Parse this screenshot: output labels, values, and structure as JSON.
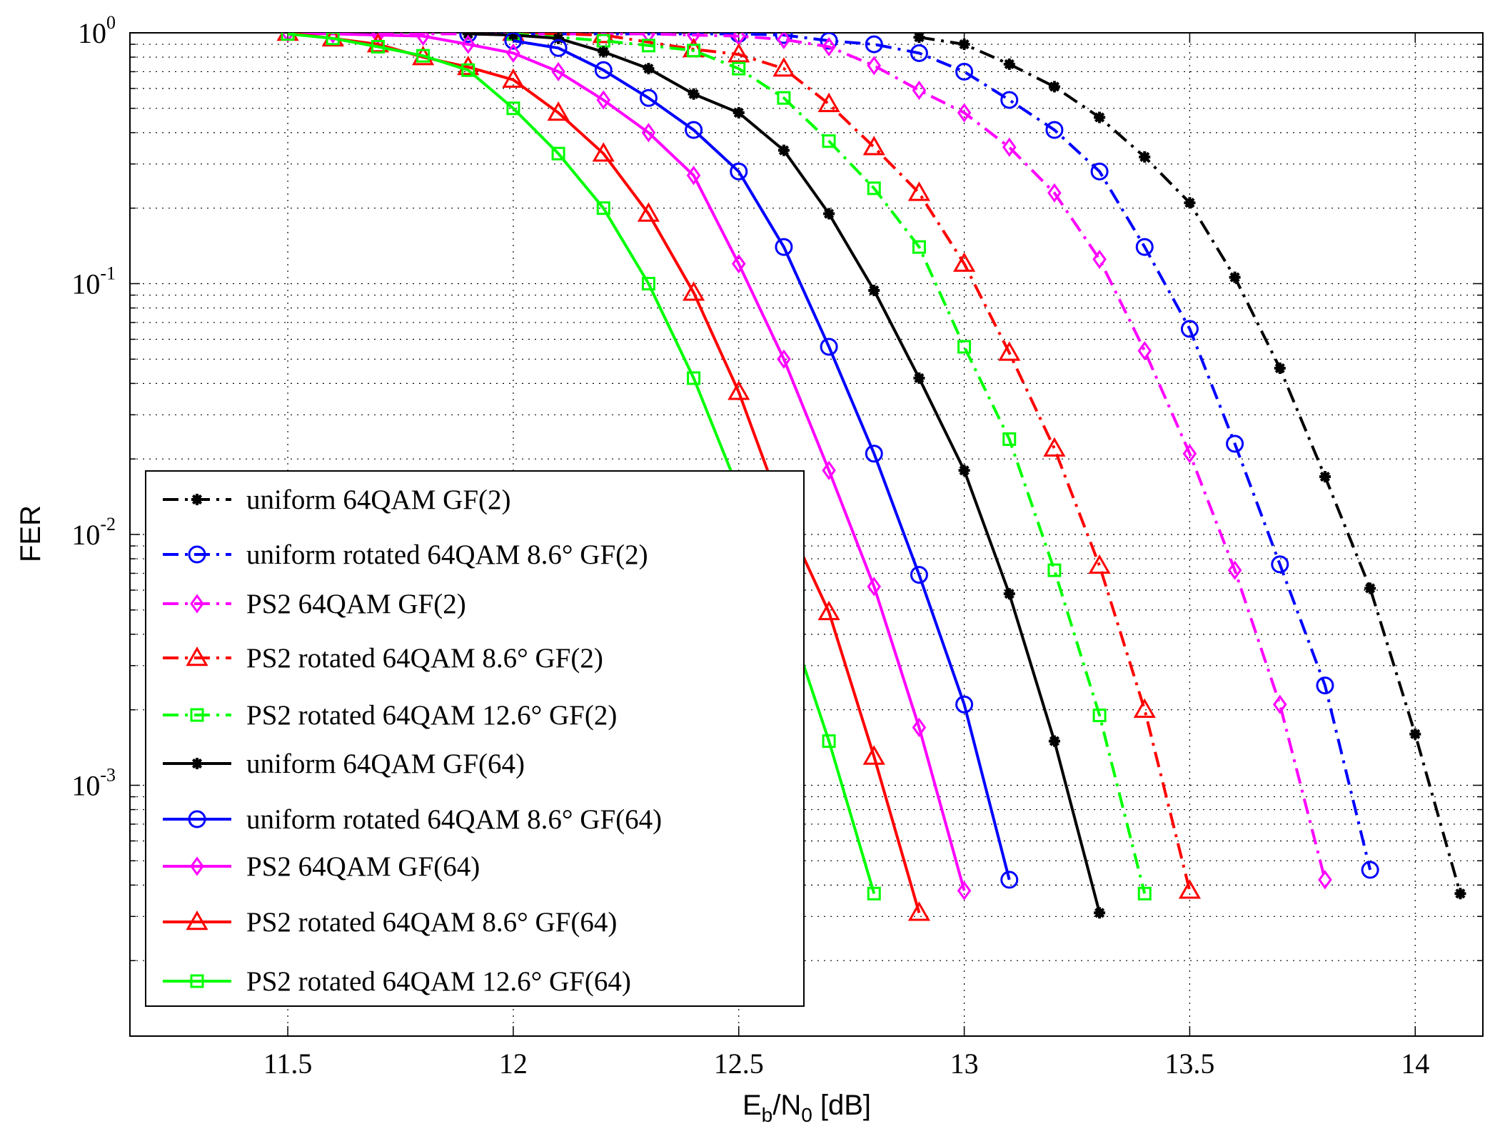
{
  "chart_data": {
    "type": "line",
    "title": "",
    "xlabel": {
      "base": "E",
      "sub1": "b",
      "mid": "/N",
      "sub2": "0",
      "tail": " [dB]"
    },
    "ylabel": "FER",
    "xlim": [
      11.15,
      14.15
    ],
    "ylim": [
      0.0001,
      1
    ],
    "yscale": "log",
    "grid": true,
    "legend_position": "bottom-left",
    "xticks": [
      "11.5",
      "12",
      "12.5",
      "13",
      "13.5",
      "14"
    ],
    "yticks": [
      {
        "base": "10",
        "exp": "0",
        "value": 1
      },
      {
        "base": "10",
        "exp": "-1",
        "value": 0.1
      },
      {
        "base": "10",
        "exp": "-2",
        "value": 0.01
      },
      {
        "base": "10",
        "exp": "-3",
        "value": 0.001
      }
    ],
    "series": [
      {
        "name": "uniform 64QAM GF(2)",
        "color": "#000000",
        "dash": "dashdot",
        "marker": "star",
        "x": [
          12.9,
          13.0,
          13.1,
          13.2,
          13.3,
          13.4,
          13.5,
          13.6,
          13.7,
          13.8,
          13.9,
          14.0,
          14.1
        ],
        "y": [
          0.96,
          0.9,
          0.75,
          0.61,
          0.46,
          0.32,
          0.21,
          0.106,
          0.046,
          0.017,
          0.0061,
          0.0016,
          0.00037
        ]
      },
      {
        "name": "uniform rotated 64QAM  8.6° GF(2)",
        "color": "#0000ff",
        "dash": "dashdot",
        "marker": "circle",
        "x": [
          11.9,
          12.5,
          12.6,
          12.7,
          12.8,
          12.9,
          13.0,
          13.1,
          13.2,
          13.3,
          13.4,
          13.5,
          13.6,
          13.7,
          13.8,
          13.9
        ],
        "y": [
          0.99,
          0.99,
          0.98,
          0.93,
          0.9,
          0.83,
          0.7,
          0.54,
          0.41,
          0.28,
          0.14,
          0.066,
          0.023,
          0.0076,
          0.0025,
          0.00046
        ]
      },
      {
        "name": "PS2 64QAM GF(2)",
        "color": "#ff00ff",
        "dash": "dashdot",
        "marker": "diamond",
        "x": [
          11.7,
          12.3,
          12.4,
          12.5,
          12.6,
          12.7,
          12.8,
          12.9,
          13.0,
          13.1,
          13.2,
          13.3,
          13.4,
          13.5,
          13.6,
          13.7,
          13.8
        ],
        "y": [
          0.99,
          0.99,
          0.98,
          0.97,
          0.94,
          0.88,
          0.74,
          0.59,
          0.48,
          0.35,
          0.23,
          0.125,
          0.054,
          0.021,
          0.0072,
          0.0021,
          0.00042
        ]
      },
      {
        "name": "PS2 rotated 64QAM  8.6° GF(2)",
        "color": "#ff0000",
        "dash": "dashdot",
        "marker": "triangle",
        "x": [
          12.0,
          12.2,
          12.4,
          12.5,
          12.6,
          12.7,
          12.8,
          12.9,
          13.0,
          13.1,
          13.2,
          13.3,
          13.4,
          13.5
        ],
        "y": [
          1.0,
          0.98,
          0.86,
          0.82,
          0.72,
          0.52,
          0.35,
          0.23,
          0.12,
          0.053,
          0.022,
          0.0075,
          0.002,
          0.00038
        ]
      },
      {
        "name": "PS2 rotated 64QAM  12.6° GF(2)",
        "color": "#00ff00",
        "dash": "dashdot",
        "marker": "square",
        "x": [
          12.0,
          12.2,
          12.3,
          12.4,
          12.5,
          12.6,
          12.7,
          12.8,
          12.9,
          13.0,
          13.1,
          13.2,
          13.3,
          13.4
        ],
        "y": [
          0.99,
          0.93,
          0.89,
          0.85,
          0.72,
          0.55,
          0.37,
          0.24,
          0.14,
          0.056,
          0.024,
          0.0072,
          0.0019,
          0.00037
        ]
      },
      {
        "name": "uniform 64QAM GF(64)",
        "color": "#000000",
        "dash": "solid",
        "marker": "star",
        "x": [
          11.9,
          12.0,
          12.1,
          12.2,
          12.3,
          12.4,
          12.5,
          12.6,
          12.7,
          12.8,
          12.9,
          13.0,
          13.1,
          13.2,
          13.3
        ],
        "y": [
          0.99,
          0.98,
          0.95,
          0.84,
          0.72,
          0.57,
          0.48,
          0.34,
          0.19,
          0.094,
          0.042,
          0.018,
          0.0058,
          0.0015,
          0.00031
        ]
      },
      {
        "name": "uniform rotated 64QAM  8.6° GF(64)",
        "color": "#0000ff",
        "dash": "solid",
        "marker": "circle",
        "x": [
          12.0,
          12.1,
          12.2,
          12.3,
          12.4,
          12.5,
          12.6,
          12.7,
          12.8,
          12.9,
          13.0,
          13.1
        ],
        "y": [
          0.93,
          0.87,
          0.71,
          0.55,
          0.41,
          0.28,
          0.14,
          0.056,
          0.021,
          0.0069,
          0.0021,
          0.00042
        ]
      },
      {
        "name": "PS2 64QAM GF(64)",
        "color": "#ff00ff",
        "dash": "solid",
        "marker": "diamond",
        "x": [
          11.5,
          11.6,
          11.7,
          11.8,
          11.9,
          12.0,
          12.1,
          12.2,
          12.3,
          12.4,
          12.5,
          12.6,
          12.7,
          12.8,
          12.9,
          13.0
        ],
        "y": [
          1.0,
          0.99,
          0.98,
          0.97,
          0.9,
          0.83,
          0.7,
          0.54,
          0.4,
          0.27,
          0.12,
          0.05,
          0.018,
          0.0062,
          0.0017,
          0.00038
        ]
      },
      {
        "name": "PS2 rotated 64QAM  8.6° GF(64)",
        "color": "#ff0000",
        "dash": "solid",
        "marker": "triangle",
        "x": [
          11.5,
          11.6,
          11.7,
          11.8,
          11.9,
          12.0,
          12.1,
          12.2,
          12.3,
          12.4,
          12.5,
          12.6,
          12.7,
          12.8,
          12.9
        ],
        "y": [
          1.0,
          0.95,
          0.9,
          0.8,
          0.73,
          0.65,
          0.48,
          0.33,
          0.19,
          0.092,
          0.037,
          0.012,
          0.0049,
          0.0013,
          0.00031
        ]
      },
      {
        "name": "PS2 rotated 64QAM  12.6° GF(64)",
        "color": "#00ff00",
        "dash": "solid",
        "marker": "square",
        "x": [
          11.5,
          11.6,
          11.7,
          11.8,
          11.9,
          12.0,
          12.1,
          12.2,
          12.3,
          12.4,
          12.5,
          12.6,
          12.7,
          12.8
        ],
        "y": [
          0.99,
          0.95,
          0.88,
          0.81,
          0.71,
          0.5,
          0.33,
          0.2,
          0.1,
          0.042,
          0.015,
          0.0052,
          0.0015,
          0.00037
        ]
      }
    ]
  }
}
